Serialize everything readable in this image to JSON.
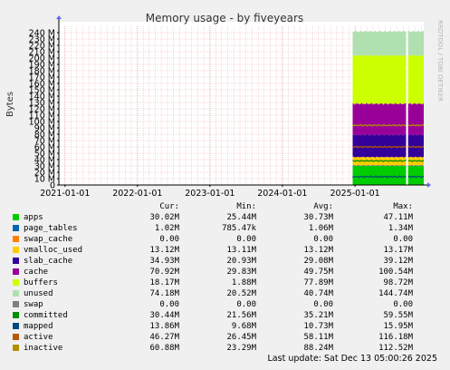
{
  "chart_data": {
    "type": "area",
    "title": "Memory usage - by fiveyears",
    "ylabel": "Bytes",
    "side_label": "RRDTOOL / TOBI OETIKER",
    "ylim": [
      0,
      250
    ],
    "y_unit": "M",
    "y_ticks": [
      0,
      10,
      20,
      30,
      40,
      50,
      60,
      70,
      80,
      90,
      100,
      110,
      120,
      130,
      140,
      150,
      160,
      170,
      180,
      190,
      200,
      210,
      220,
      230,
      240
    ],
    "y_tick_labels": [
      "0",
      "10 M",
      "20 M",
      "30 M",
      "40 M",
      "50 M",
      "60 M",
      "70 M",
      "80 M",
      "90 M",
      "100 M",
      "110 M",
      "120 M",
      "130 M",
      "140 M",
      "150 M",
      "160 M",
      "170 M",
      "180 M",
      "190 M",
      "200 M",
      "210 M",
      "220 M",
      "230 M",
      "240 M"
    ],
    "x_range": [
      "2020-12-01",
      "2025-12-13"
    ],
    "x_ticks": [
      "2021-01-01",
      "2022-01-01",
      "2023-01-01",
      "2024-01-01",
      "2025-01-01"
    ],
    "grid": true,
    "data_range": [
      "2024-12-20",
      "2025-12-13"
    ],
    "gap_range": [
      "2025-09-15",
      "2025-09-25"
    ],
    "stack_totals_typical_M": {
      "apps": 30,
      "page_tables": 31,
      "swap_cache": 31,
      "vmalloc_used": 44,
      "slab_cache": 79,
      "cache": 128,
      "buffers": 204,
      "unused": 242
    },
    "line_levels_typical_M": {
      "committed": 38,
      "mapped": 13,
      "active": 60,
      "inactive": 94
    },
    "columns": [
      "Cur:",
      "Min:",
      "Avg:",
      "Max:"
    ],
    "series": [
      {
        "name": "apps",
        "color": "#00cc00",
        "cur": "30.02M",
        "min": "25.44M",
        "avg": "30.73M",
        "max": "47.11M"
      },
      {
        "name": "page_tables",
        "color": "#0066b3",
        "cur": "1.02M",
        "min": "785.47k",
        "avg": "1.06M",
        "max": "1.34M"
      },
      {
        "name": "swap_cache",
        "color": "#ff8000",
        "cur": "0.00",
        "min": "0.00",
        "avg": "0.00",
        "max": "0.00"
      },
      {
        "name": "vmalloc_used",
        "color": "#ffcc00",
        "cur": "13.12M",
        "min": "13.11M",
        "avg": "13.12M",
        "max": "13.17M"
      },
      {
        "name": "slab_cache",
        "color": "#330099",
        "cur": "34.93M",
        "min": "20.93M",
        "avg": "29.08M",
        "max": "39.12M"
      },
      {
        "name": "cache",
        "color": "#990099",
        "cur": "70.92M",
        "min": "29.83M",
        "avg": "49.75M",
        "max": "100.54M"
      },
      {
        "name": "buffers",
        "color": "#ccff00",
        "cur": "18.17M",
        "min": "1.88M",
        "avg": "77.89M",
        "max": "98.72M"
      },
      {
        "name": "unused",
        "color": "#b0e0b0",
        "cur": "74.18M",
        "min": "20.52M",
        "avg": "40.74M",
        "max": "144.74M"
      },
      {
        "name": "swap",
        "color": "#808080",
        "cur": "0.00",
        "min": "0.00",
        "avg": "0.00",
        "max": "0.00"
      },
      {
        "name": "committed",
        "color": "#008f00",
        "cur": "30.44M",
        "min": "21.56M",
        "avg": "35.21M",
        "max": "59.55M"
      },
      {
        "name": "mapped",
        "color": "#00487d",
        "cur": "13.86M",
        "min": "9.68M",
        "avg": "10.73M",
        "max": "15.95M"
      },
      {
        "name": "active",
        "color": "#b35a00",
        "cur": "46.27M",
        "min": "26.45M",
        "avg": "58.11M",
        "max": "116.18M"
      },
      {
        "name": "inactive",
        "color": "#b38f00",
        "cur": "60.88M",
        "min": "23.29M",
        "avg": "88.24M",
        "max": "112.52M"
      }
    ],
    "footer": "Last update: Sat Dec 13 05:00:26 2025"
  }
}
